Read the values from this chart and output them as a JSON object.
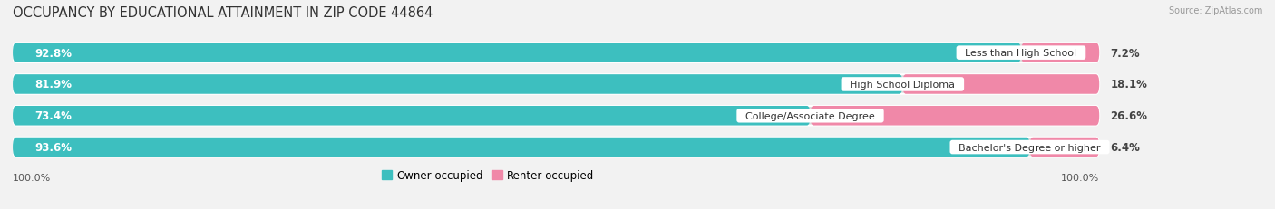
{
  "title": "OCCUPANCY BY EDUCATIONAL ATTAINMENT IN ZIP CODE 44864",
  "source": "Source: ZipAtlas.com",
  "categories": [
    "Less than High School",
    "High School Diploma",
    "College/Associate Degree",
    "Bachelor's Degree or higher"
  ],
  "owner_pct": [
    92.8,
    81.9,
    73.4,
    93.6
  ],
  "renter_pct": [
    7.2,
    18.1,
    26.6,
    6.4
  ],
  "owner_color": "#3DBFBF",
  "renter_color": "#F088A8",
  "bg_color": "#F2F2F2",
  "bar_bg_color": "#DCDCDC",
  "axis_label_left": "100.0%",
  "axis_label_right": "100.0%",
  "legend_owner": "Owner-occupied",
  "legend_renter": "Renter-occupied",
  "title_fontsize": 10.5,
  "bar_height": 0.62,
  "renter_label_color": "#444444"
}
